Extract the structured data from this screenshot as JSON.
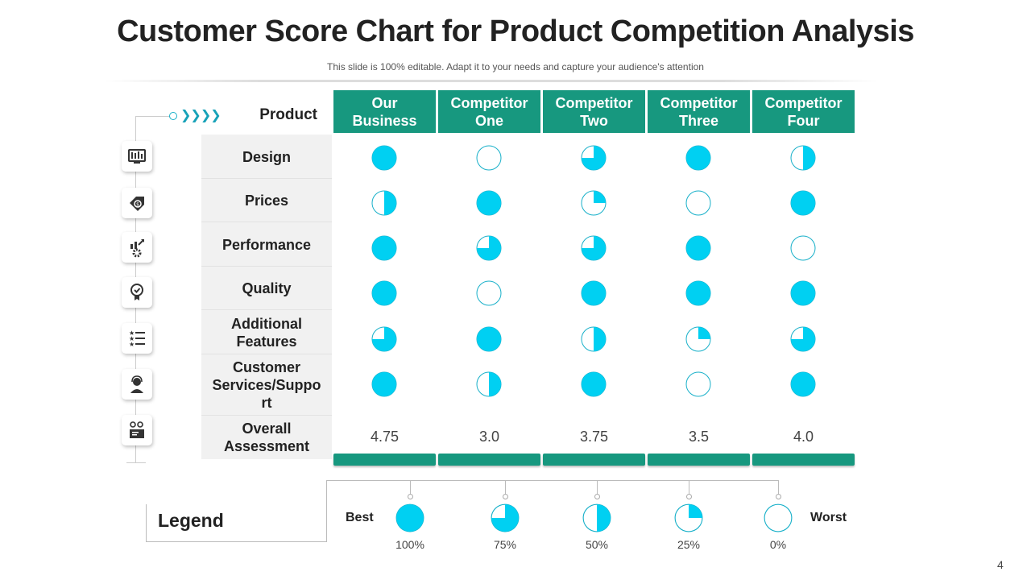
{
  "title": "Customer Score Chart for Product Competition Analysis",
  "subtitle": "This slide is 100% editable. Adapt it to your needs and capture your audience's attention",
  "chevrons": "❯❯❯❯",
  "product_label": "Product",
  "columns": [
    {
      "line1": "Our",
      "line2": "Business"
    },
    {
      "line1": "Competitor",
      "line2": "One"
    },
    {
      "line1": "Competitor",
      "line2": "Two"
    },
    {
      "line1": "Competitor",
      "line2": "Three"
    },
    {
      "line1": "Competitor",
      "line2": "Four"
    }
  ],
  "rows": [
    {
      "label": "Design",
      "icon": "monitor-tools-icon",
      "scores": [
        100,
        0,
        75,
        100,
        50
      ]
    },
    {
      "label": "Prices",
      "icon": "price-tag-icon",
      "scores": [
        50,
        100,
        25,
        0,
        100
      ]
    },
    {
      "label": "Performance",
      "icon": "growth-gear-icon",
      "scores": [
        100,
        75,
        75,
        100,
        0
      ]
    },
    {
      "label": "Quality",
      "icon": "quality-badge-icon",
      "scores": [
        100,
        0,
        100,
        100,
        100
      ]
    },
    {
      "label": "Additional Features",
      "icon": "star-list-icon",
      "scores": [
        75,
        100,
        50,
        25,
        75
      ]
    },
    {
      "label": "Customer Services/Suppo rt",
      "icon": "customer-support-icon",
      "scores": [
        100,
        50,
        100,
        0,
        100
      ]
    }
  ],
  "overall": {
    "label": "Overall Assessment",
    "icon": "assessment-icon",
    "values": [
      "4.75",
      "3.0",
      "3.75",
      "3.5",
      "4.0"
    ]
  },
  "legend": {
    "title": "Legend",
    "best": "Best",
    "worst": "Worst",
    "items": [
      {
        "label": "100%",
        "fill": 100
      },
      {
        "label": "75%",
        "fill": 75
      },
      {
        "label": "50%",
        "fill": 50
      },
      {
        "label": "25%",
        "fill": 25
      },
      {
        "label": "0%",
        "fill": 0
      }
    ]
  },
  "colors": {
    "header": "#17987f",
    "ball": "#00d0f2",
    "ball_border": "#17b0c9"
  },
  "page_number": "4"
}
